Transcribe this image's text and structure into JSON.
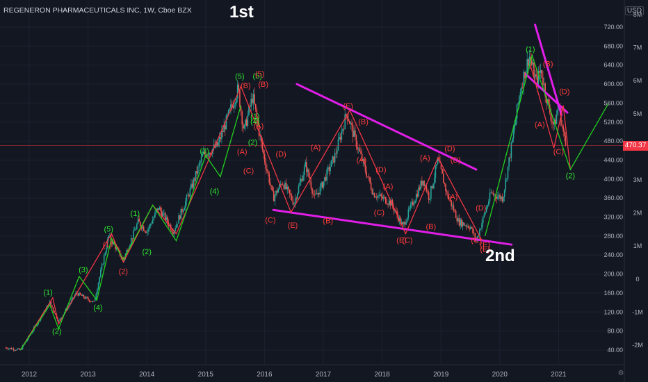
{
  "header": {
    "title": "REGENERON PHARMACEUTICALS INC, 1W, Cboe BZX"
  },
  "annotations": {
    "first": "1st",
    "second": "2nd"
  },
  "price_axis": {
    "currency": "USD",
    "last_price": "470.37",
    "last_price_color": "#f23645"
  },
  "colors": {
    "background": "#131722",
    "up_candle": "#26a69a",
    "down_candle": "#ef5350",
    "wave_red": "#f23645",
    "wave_green": "#22d11f",
    "trendline": "#e11ee8",
    "label_red": "#ff3b3b",
    "label_green": "#2ee82e"
  },
  "chart_data": {
    "type": "candlestick",
    "symbol": "REGENERON PHARMACEUTICALS INC",
    "interval": "1W",
    "exchange": "Cboe BZX",
    "x_axis_labels": [
      "2012",
      "2013",
      "2014",
      "2015",
      "2016",
      "2017",
      "2018",
      "2019",
      "2020",
      "2021"
    ],
    "price_ticks": [
      720,
      680,
      640,
      600,
      560,
      520,
      480,
      440,
      400,
      360,
      320,
      280,
      240,
      200,
      160,
      120,
      80,
      40
    ],
    "price_tick_labels": [
      "720.00",
      "680.00",
      "640.00",
      "600.00",
      "560.00",
      "520.00",
      "480.00",
      "440.00",
      "400.00",
      "360.00",
      "320.00",
      "280.00",
      "240.00",
      "200.00",
      "160.00",
      "120.00",
      "80.00",
      "40.00"
    ],
    "volume_ticks": [
      "8M",
      "7M",
      "6M",
      "5M",
      "4M",
      "3M",
      "2M",
      "1M",
      "0",
      "-1M",
      "-2M"
    ],
    "ylim": [
      30,
      725
    ],
    "last_price": 470.37,
    "price_path": [
      [
        2011.6,
        45
      ],
      [
        2011.85,
        40
      ],
      [
        2012.0,
        70
      ],
      [
        2012.35,
        140
      ],
      [
        2012.5,
        100
      ],
      [
        2012.8,
        160
      ],
      [
        2013.1,
        140
      ],
      [
        2013.35,
        280
      ],
      [
        2013.6,
        230
      ],
      [
        2013.85,
        310
      ],
      [
        2014.0,
        290
      ],
      [
        2014.2,
        340
      ],
      [
        2014.45,
        290
      ],
      [
        2014.75,
        380
      ],
      [
        2014.95,
        450
      ],
      [
        2015.2,
        470
      ],
      [
        2015.55,
        590
      ],
      [
        2015.65,
        500
      ],
      [
        2015.8,
        575
      ],
      [
        2015.95,
        470
      ],
      [
        2016.15,
        360
      ],
      [
        2016.3,
        395
      ],
      [
        2016.5,
        350
      ],
      [
        2016.7,
        430
      ],
      [
        2016.85,
        360
      ],
      [
        2016.95,
        380
      ],
      [
        2017.2,
        450
      ],
      [
        2017.4,
        540
      ],
      [
        2017.55,
        480
      ],
      [
        2017.85,
        370
      ],
      [
        2018.15,
        350
      ],
      [
        2018.35,
        300
      ],
      [
        2018.45,
        330
      ],
      [
        2018.7,
        400
      ],
      [
        2018.8,
        360
      ],
      [
        2018.95,
        440
      ],
      [
        2019.1,
        370
      ],
      [
        2019.3,
        310
      ],
      [
        2019.5,
        300
      ],
      [
        2019.6,
        270
      ],
      [
        2019.85,
        370
      ],
      [
        2020.05,
        360
      ],
      [
        2020.2,
        470
      ],
      [
        2020.35,
        590
      ],
      [
        2020.5,
        660
      ],
      [
        2020.62,
        605
      ],
      [
        2020.7,
        630
      ],
      [
        2020.82,
        555
      ],
      [
        2020.92,
        510
      ],
      [
        2021.0,
        555
      ],
      [
        2021.12,
        470
      ]
    ],
    "wave_lines": [
      {
        "color": "red",
        "points": [
          [
            2011.85,
            40
          ],
          [
            2012.4,
            150
          ],
          [
            2012.5,
            95
          ],
          [
            2013.4,
            285
          ],
          [
            2013.6,
            225
          ],
          [
            2014.1,
            345
          ],
          [
            2014.5,
            285
          ],
          [
            2015.6,
            595
          ],
          [
            2016.45,
            330
          ],
          [
            2017.45,
            545
          ],
          [
            2018.4,
            285
          ],
          [
            2018.95,
            445
          ],
          [
            2019.7,
            270
          ]
        ]
      },
      {
        "color": "red",
        "points": [
          [
            2020.52,
            640
          ],
          [
            2020.92,
            465
          ],
          [
            2021.08,
            555
          ],
          [
            2021.2,
            420
          ]
        ]
      },
      {
        "color": "green",
        "points": [
          [
            2011.85,
            40
          ],
          [
            2012.35,
            135
          ],
          [
            2012.5,
            85
          ],
          [
            2012.85,
            195
          ],
          [
            2013.15,
            145
          ],
          [
            2013.4,
            275
          ],
          [
            2013.6,
            230
          ],
          [
            2014.1,
            345
          ],
          [
            2014.5,
            270
          ],
          [
            2015.0,
            450
          ],
          [
            2015.25,
            405
          ],
          [
            2015.6,
            555
          ]
        ]
      },
      {
        "color": "green",
        "points": [
          [
            2019.75,
            280
          ],
          [
            2020.55,
            660
          ],
          [
            2021.2,
            420
          ],
          [
            2021.85,
            560
          ]
        ]
      }
    ],
    "trendlines": [
      {
        "from": [
          2016.55,
          600
        ],
        "to": [
          2019.6,
          420
        ]
      },
      {
        "from": [
          2016.15,
          335
        ],
        "to": [
          2020.2,
          262
        ]
      },
      {
        "from": [
          2020.45,
          620
        ],
        "to": [
          2021.15,
          540
        ]
      },
      {
        "from": [
          2020.6,
          725
        ],
        "to": [
          2021.05,
          535
        ]
      }
    ],
    "wave_labels": [
      {
        "text": "(1)",
        "color": "green",
        "x": 2012.32,
        "y": 162
      },
      {
        "text": "(2)",
        "color": "green",
        "x": 2012.47,
        "y": 80
      },
      {
        "text": "(3)",
        "color": "green",
        "x": 2012.92,
        "y": 210
      },
      {
        "text": "(4)",
        "color": "green",
        "x": 2013.17,
        "y": 130
      },
      {
        "text": "(5)",
        "color": "green",
        "x": 2013.35,
        "y": 295
      },
      {
        "text": "(1)",
        "color": "red",
        "x": 2013.33,
        "y": 262
      },
      {
        "text": "(2)",
        "color": "red",
        "x": 2013.6,
        "y": 206
      },
      {
        "text": "(1)",
        "color": "green",
        "x": 2013.8,
        "y": 328
      },
      {
        "text": "(2)",
        "color": "green",
        "x": 2014.0,
        "y": 248
      },
      {
        "text": "(3)",
        "color": "green",
        "x": 2014.98,
        "y": 460
      },
      {
        "text": "(4)",
        "color": "green",
        "x": 2015.15,
        "y": 375
      },
      {
        "text": "(5)",
        "color": "green",
        "x": 2015.58,
        "y": 617
      },
      {
        "text": "(B)",
        "color": "red",
        "x": 2015.68,
        "y": 597
      },
      {
        "text": "(A)",
        "color": "red",
        "x": 2015.62,
        "y": 458
      },
      {
        "text": "(5)",
        "color": "green",
        "x": 2015.88,
        "y": 618
      },
      {
        "text": "(5)",
        "color": "red",
        "x": 2015.92,
        "y": 622
      },
      {
        "text": "(B)",
        "color": "red",
        "x": 2015.98,
        "y": 600
      },
      {
        "text": "(1)",
        "color": "green",
        "x": 2015.84,
        "y": 533
      },
      {
        "text": "(A)",
        "color": "red",
        "x": 2015.9,
        "y": 512
      },
      {
        "text": "(4)",
        "color": "green",
        "x": 2015.84,
        "y": 522
      },
      {
        "text": "(2)",
        "color": "green",
        "x": 2015.8,
        "y": 478
      },
      {
        "text": "(C)",
        "color": "red",
        "x": 2015.73,
        "y": 418
      },
      {
        "text": "(D)",
        "color": "red",
        "x": 2016.28,
        "y": 453
      },
      {
        "text": "(C)",
        "color": "red",
        "x": 2016.1,
        "y": 314
      },
      {
        "text": "(E)",
        "color": "red",
        "x": 2016.48,
        "y": 303
      },
      {
        "text": "(A)",
        "color": "red",
        "x": 2016.87,
        "y": 467
      },
      {
        "text": "(B)",
        "color": "red",
        "x": 2017.08,
        "y": 313
      },
      {
        "text": "(E)",
        "color": "red",
        "x": 2017.42,
        "y": 554
      },
      {
        "text": "(B)",
        "color": "red",
        "x": 2017.68,
        "y": 521
      },
      {
        "text": "(A)",
        "color": "red",
        "x": 2017.65,
        "y": 441
      },
      {
        "text": "(D)",
        "color": "red",
        "x": 2017.98,
        "y": 420
      },
      {
        "text": "(A)",
        "color": "red",
        "x": 2018.1,
        "y": 385
      },
      {
        "text": "(C)",
        "color": "red",
        "x": 2017.95,
        "y": 330
      },
      {
        "text": "(E)",
        "color": "red",
        "x": 2018.33,
        "y": 272
      },
      {
        "text": "(C)",
        "color": "red",
        "x": 2018.43,
        "y": 272
      },
      {
        "text": "(B)",
        "color": "red",
        "x": 2018.83,
        "y": 300
      },
      {
        "text": "(A)",
        "color": "red",
        "x": 2018.73,
        "y": 445
      },
      {
        "text": "(D)",
        "color": "red",
        "x": 2019.15,
        "y": 465
      },
      {
        "text": "(D)",
        "color": "red",
        "x": 2019.25,
        "y": 441
      },
      {
        "text": "(A)",
        "color": "red",
        "x": 2019.2,
        "y": 363
      },
      {
        "text": "(D)",
        "color": "red",
        "x": 2019.68,
        "y": 340
      },
      {
        "text": "(C)",
        "color": "red",
        "x": 2019.6,
        "y": 272
      },
      {
        "text": "(E)",
        "color": "red",
        "x": 2019.75,
        "y": 262
      },
      {
        "text": "(E)",
        "color": "red",
        "x": 2019.75,
        "y": 253
      },
      {
        "text": "(1)",
        "color": "green",
        "x": 2020.52,
        "y": 674
      },
      {
        "text": "(B)",
        "color": "red",
        "x": 2020.82,
        "y": 643
      },
      {
        "text": "(D)",
        "color": "red",
        "x": 2021.1,
        "y": 585
      },
      {
        "text": "(A)",
        "color": "red",
        "x": 2020.68,
        "y": 515
      },
      {
        "text": "(C)",
        "color": "red",
        "x": 2021.0,
        "y": 458
      },
      {
        "text": "(2)",
        "color": "green",
        "x": 2021.2,
        "y": 408
      }
    ]
  }
}
